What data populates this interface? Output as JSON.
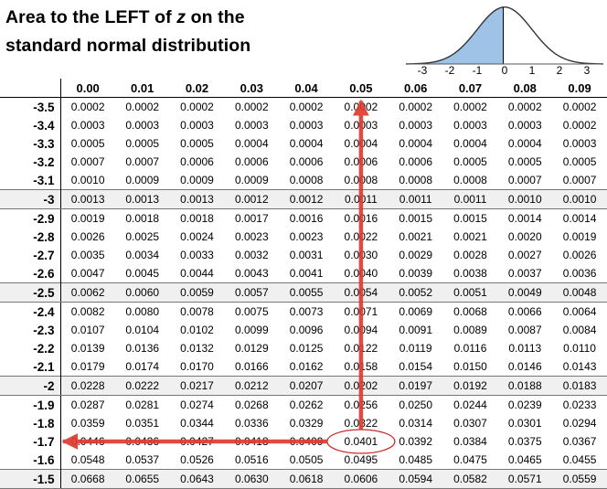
{
  "title": {
    "line1_pre": "Area to the LEFT of ",
    "line1_var": "z",
    "line1_post": " on the",
    "line2": "standard normal distribution"
  },
  "curve_axis": {
    "ticks": [
      "-3",
      "-2",
      "-1",
      "0",
      "1",
      "2",
      "3"
    ],
    "shade_to": -0.05
  },
  "table": {
    "columns": [
      "0.00",
      "0.01",
      "0.02",
      "0.03",
      "0.04",
      "0.05",
      "0.06",
      "0.07",
      "0.08",
      "0.09"
    ],
    "rows": [
      {
        "z": "-3.5",
        "v": [
          "0.0002",
          "0.0002",
          "0.0002",
          "0.0002",
          "0.0002",
          "0.0002",
          "0.0002",
          "0.0002",
          "0.0002",
          "0.0002"
        ]
      },
      {
        "z": "-3.4",
        "v": [
          "0.0003",
          "0.0003",
          "0.0003",
          "0.0003",
          "0.0003",
          "0.0003",
          "0.0003",
          "0.0003",
          "0.0003",
          "0.0002"
        ]
      },
      {
        "z": "-3.3",
        "v": [
          "0.0005",
          "0.0005",
          "0.0005",
          "0.0004",
          "0.0004",
          "0.0004",
          "0.0004",
          "0.0004",
          "0.0004",
          "0.0003"
        ]
      },
      {
        "z": "-3.2",
        "v": [
          "0.0007",
          "0.0007",
          "0.0006",
          "0.0006",
          "0.0006",
          "0.0006",
          "0.0006",
          "0.0005",
          "0.0005",
          "0.0005"
        ]
      },
      {
        "z": "-3.1",
        "v": [
          "0.0010",
          "0.0009",
          "0.0009",
          "0.0009",
          "0.0008",
          "0.0008",
          "0.0008",
          "0.0008",
          "0.0007",
          "0.0007"
        ]
      },
      {
        "z": "-3",
        "v": [
          "0.0013",
          "0.0013",
          "0.0013",
          "0.0012",
          "0.0012",
          "0.0011",
          "0.0011",
          "0.0011",
          "0.0010",
          "0.0010"
        ],
        "shade": true
      },
      {
        "z": "-2.9",
        "v": [
          "0.0019",
          "0.0018",
          "0.0018",
          "0.0017",
          "0.0016",
          "0.0016",
          "0.0015",
          "0.0015",
          "0.0014",
          "0.0014"
        ]
      },
      {
        "z": "-2.8",
        "v": [
          "0.0026",
          "0.0025",
          "0.0024",
          "0.0023",
          "0.0023",
          "0.0022",
          "0.0021",
          "0.0021",
          "0.0020",
          "0.0019"
        ]
      },
      {
        "z": "-2.7",
        "v": [
          "0.0035",
          "0.0034",
          "0.0033",
          "0.0032",
          "0.0031",
          "0.0030",
          "0.0029",
          "0.0028",
          "0.0027",
          "0.0026"
        ]
      },
      {
        "z": "-2.6",
        "v": [
          "0.0047",
          "0.0045",
          "0.0044",
          "0.0043",
          "0.0041",
          "0.0040",
          "0.0039",
          "0.0038",
          "0.0037",
          "0.0036"
        ]
      },
      {
        "z": "-2.5",
        "v": [
          "0.0062",
          "0.0060",
          "0.0059",
          "0.0057",
          "0.0055",
          "0.0054",
          "0.0052",
          "0.0051",
          "0.0049",
          "0.0048"
        ],
        "shade": true
      },
      {
        "z": "-2.4",
        "v": [
          "0.0082",
          "0.0080",
          "0.0078",
          "0.0075",
          "0.0073",
          "0.0071",
          "0.0069",
          "0.0068",
          "0.0066",
          "0.0064"
        ]
      },
      {
        "z": "-2.3",
        "v": [
          "0.0107",
          "0.0104",
          "0.0102",
          "0.0099",
          "0.0096",
          "0.0094",
          "0.0091",
          "0.0089",
          "0.0087",
          "0.0084"
        ]
      },
      {
        "z": "-2.2",
        "v": [
          "0.0139",
          "0.0136",
          "0.0132",
          "0.0129",
          "0.0125",
          "0.0122",
          "0.0119",
          "0.0116",
          "0.0113",
          "0.0110"
        ]
      },
      {
        "z": "-2.1",
        "v": [
          "0.0179",
          "0.0174",
          "0.0170",
          "0.0166",
          "0.0162",
          "0.0158",
          "0.0154",
          "0.0150",
          "0.0146",
          "0.0143"
        ]
      },
      {
        "z": "-2",
        "v": [
          "0.0228",
          "0.0222",
          "0.0217",
          "0.0212",
          "0.0207",
          "0.0202",
          "0.0197",
          "0.0192",
          "0.0188",
          "0.0183"
        ],
        "shade": true
      },
      {
        "z": "-1.9",
        "v": [
          "0.0287",
          "0.0281",
          "0.0274",
          "0.0268",
          "0.0262",
          "0.0256",
          "0.0250",
          "0.0244",
          "0.0239",
          "0.0233"
        ]
      },
      {
        "z": "-1.8",
        "v": [
          "0.0359",
          "0.0351",
          "0.0344",
          "0.0336",
          "0.0329",
          "0.0322",
          "0.0314",
          "0.0307",
          "0.0301",
          "0.0294"
        ]
      },
      {
        "z": "-1.7",
        "v": [
          "0.0446",
          "0.0436",
          "0.0427",
          "0.0418",
          "0.0409",
          "0.0401",
          "0.0392",
          "0.0384",
          "0.0375",
          "0.0367"
        ]
      },
      {
        "z": "-1.6",
        "v": [
          "0.0548",
          "0.0537",
          "0.0526",
          "0.0516",
          "0.0505",
          "0.0495",
          "0.0485",
          "0.0475",
          "0.0465",
          "0.0455"
        ]
      },
      {
        "z": "-1.5",
        "v": [
          "0.0668",
          "0.0655",
          "0.0643",
          "0.0630",
          "0.0618",
          "0.0606",
          "0.0594",
          "0.0582",
          "0.0571",
          "0.0559"
        ],
        "shade": true
      }
    ]
  },
  "highlight": {
    "row_z": "-1.7",
    "col": "0.05",
    "value": "0.0401"
  },
  "colors": {
    "arrow": "#e03a2f",
    "circle": "#cc2a2a",
    "curve_fill": "#9ec3e6",
    "curve_line": "#333333",
    "shade_row": "#f0f0f0"
  }
}
